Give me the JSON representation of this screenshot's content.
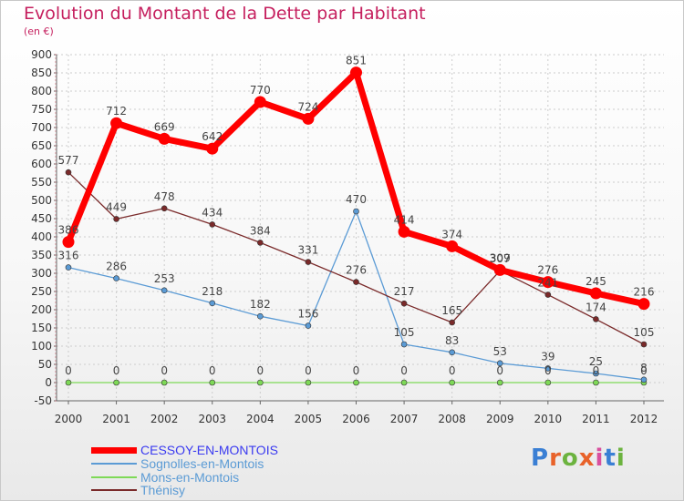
{
  "title": "Evolution du Montant de la Dette par Habitant",
  "subtitle": "(en €)",
  "logo": {
    "text": "Proxiti",
    "letters": [
      "P",
      "r",
      "o",
      "x",
      "i",
      "t",
      "i"
    ],
    "colors": [
      "#3a7fd4",
      "#e8622a",
      "#6cb33f",
      "#e8622a",
      "#d94f9e",
      "#3a7fd4",
      "#6cb33f"
    ]
  },
  "chart_data": {
    "type": "line",
    "title": "Evolution du Montant de la Dette par Habitant",
    "subtitle": "(en €)",
    "xlabel": "",
    "ylabel": "",
    "ylim": [
      -50,
      900
    ],
    "yticks": [
      -50,
      0,
      50,
      100,
      150,
      200,
      250,
      300,
      350,
      400,
      450,
      500,
      550,
      600,
      650,
      700,
      750,
      800,
      850,
      900
    ],
    "grid": true,
    "legend_position": "bottom-left",
    "categories": [
      "2000",
      "2001",
      "2002",
      "2003",
      "2004",
      "2005",
      "2006",
      "2007",
      "2008",
      "2009",
      "2010",
      "2011",
      "2012"
    ],
    "series": [
      {
        "name": "CESSOY-EN-MONTOIS",
        "color": "#ff0000",
        "label_color": "#3a3af0",
        "values": [
          386,
          712,
          669,
          642,
          770,
          724,
          851,
          414,
          374,
          309,
          276,
          245,
          216
        ]
      },
      {
        "name": "Sognolles-en-Montois",
        "color": "#5b9bd5",
        "label_color": "#5b9bd5",
        "values": [
          316,
          286,
          253,
          218,
          182,
          156,
          470,
          105,
          83,
          53,
          39,
          25,
          8
        ]
      },
      {
        "name": "Mons-en-Montois",
        "color": "#7ed957",
        "label_color": "#5b9bd5",
        "values": [
          0,
          0,
          0,
          0,
          0,
          0,
          0,
          0,
          0,
          0,
          0,
          0,
          0
        ]
      },
      {
        "name": "Thénisy",
        "color": "#7a2a2a",
        "label_color": "#5b9bd5",
        "values": [
          577,
          449,
          478,
          434,
          384,
          331,
          276,
          217,
          165,
          307,
          241,
          174,
          105
        ]
      }
    ]
  }
}
